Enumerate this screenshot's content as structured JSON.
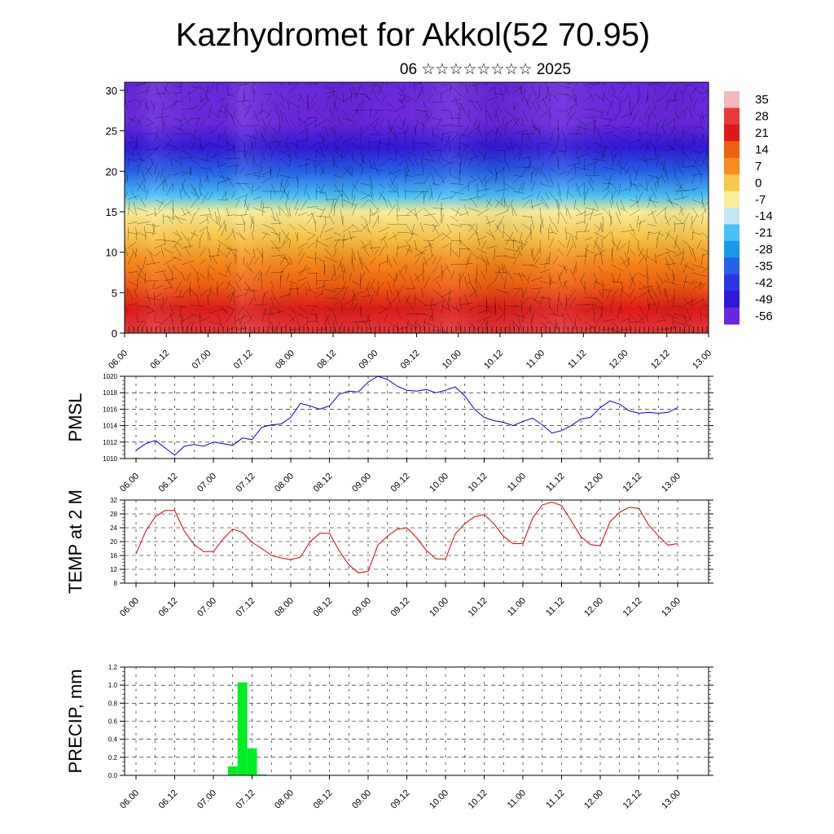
{
  "header": {
    "title": "Kazhydromet for Akkol(52 70.95)",
    "subtitle": "06 ☆☆☆☆☆☆☆☆ 2025"
  },
  "time_axis_labels": [
    "06.00",
    "06.12",
    "07.00",
    "07.12",
    "08.00",
    "08.12",
    "09.00",
    "09.12",
    "10.00",
    "10.12",
    "11.00",
    "11.12",
    "12.00",
    "12.12",
    "13.00"
  ],
  "chart_data": [
    {
      "type": "heatmap",
      "name": "cross-section",
      "x": [
        "06.00",
        "06.12",
        "07.00",
        "07.12",
        "08.00",
        "08.12",
        "09.00",
        "09.12",
        "10.00",
        "10.12",
        "11.00",
        "11.12",
        "12.00",
        "12.12",
        "13.00"
      ],
      "ylim": [
        0,
        31
      ],
      "yticks": [
        0,
        5,
        10,
        15,
        20,
        25,
        30
      ],
      "colorbar": {
        "labels": [
          "35",
          "28",
          "21",
          "14",
          "7",
          "0",
          "-7",
          "-14",
          "-21",
          "-28",
          "-35",
          "-42",
          "-49",
          "-56"
        ],
        "colors": [
          "#f2b9bc",
          "#e83a3a",
          "#dd1a1a",
          "#f06010",
          "#f58c1e",
          "#f7c84a",
          "#faee9a",
          "#bfe8f4",
          "#47c3f3",
          "#199ae8",
          "#2660e6",
          "#2a36e0",
          "#3018d8",
          "#6a28dc"
        ]
      },
      "vertical_profile_temp": [
        {
          "level": 0,
          "temp": 30
        },
        {
          "level": 3,
          "temp": 24
        },
        {
          "level": 6,
          "temp": 16
        },
        {
          "level": 9,
          "temp": 8
        },
        {
          "level": 12,
          "temp": 0
        },
        {
          "level": 15,
          "temp": -8
        },
        {
          "level": 17,
          "temp": -18
        },
        {
          "level": 20,
          "temp": -32
        },
        {
          "level": 23,
          "temp": -50
        },
        {
          "level": 26,
          "temp": -58
        },
        {
          "level": 31,
          "temp": -60
        }
      ],
      "grid": false
    },
    {
      "type": "line",
      "ylabel": "PMSL",
      "ylim": [
        1010,
        1020
      ],
      "yticks": [
        1010,
        1012,
        1014,
        1016,
        1018,
        1020
      ],
      "color": "#0000ee",
      "series": [
        {
          "values": [
            1011,
            1011.8,
            1012.2,
            1011.3,
            1010.4,
            1011.5,
            1011.7,
            1011.5,
            1012,
            1011.8,
            1011.6,
            1012.5,
            1012.3,
            1013.8,
            1014.1,
            1014.2,
            1015,
            1016.7,
            1016.4,
            1016,
            1016.4,
            1017.8,
            1018.2,
            1018.1,
            1019.3,
            1020,
            1019.6,
            1018.8,
            1018.3,
            1018.2,
            1018.4,
            1018,
            1018.3,
            1018.7,
            1017.6,
            1016,
            1015,
            1014.6,
            1014.4,
            1014,
            1014.5,
            1014.9,
            1014.1,
            1013.1,
            1013.4,
            1014,
            1014.8,
            1015,
            1016.2,
            1017,
            1016.6,
            1015.8,
            1015.5,
            1015.6,
            1015.5,
            1015.6,
            1016.2
          ],
          "x_step_hours": 3
        }
      ],
      "grid": true
    },
    {
      "type": "line",
      "ylabel": "TEMP at 2 M",
      "ylim": [
        8,
        32
      ],
      "yticks": [
        8,
        12,
        16,
        20,
        24,
        28,
        32
      ],
      "color": "#e00000",
      "series": [
        {
          "values": [
            16.5,
            23,
            27.2,
            29,
            29,
            23,
            19.2,
            17.1,
            17.1,
            20.7,
            23.6,
            22.7,
            19.8,
            18,
            16,
            15.3,
            14.8,
            15.5,
            20,
            22.4,
            22.4,
            17.4,
            13.3,
            11,
            11.4,
            19,
            21.6,
            23.6,
            24,
            21.2,
            17.5,
            15,
            15,
            22.2,
            25.2,
            27.2,
            27.8,
            25.2,
            21.5,
            19.4,
            19.4,
            26.8,
            30.6,
            31.4,
            30.4,
            26,
            21.4,
            19.1,
            18.8,
            25.7,
            28.5,
            29.9,
            29.6,
            24.8,
            21.7,
            19,
            19.4
          ],
          "x_step_hours": 3
        }
      ],
      "grid": true
    },
    {
      "type": "bar",
      "ylabel": "PRECIP, mm",
      "ylim": [
        0,
        1.2
      ],
      "yticks": [
        "0.0",
        "0.2",
        "0.4",
        "0.6",
        "0.8",
        "1.0",
        "1.2"
      ],
      "color": "#00ee22",
      "bars": [
        {
          "time": "07.06",
          "value": 0.1
        },
        {
          "time": "07.09",
          "value": 1.03
        },
        {
          "time": "07.12",
          "value": 0.3
        },
        {
          "time": "07.15",
          "value": 0.01
        }
      ],
      "grid": true
    }
  ]
}
